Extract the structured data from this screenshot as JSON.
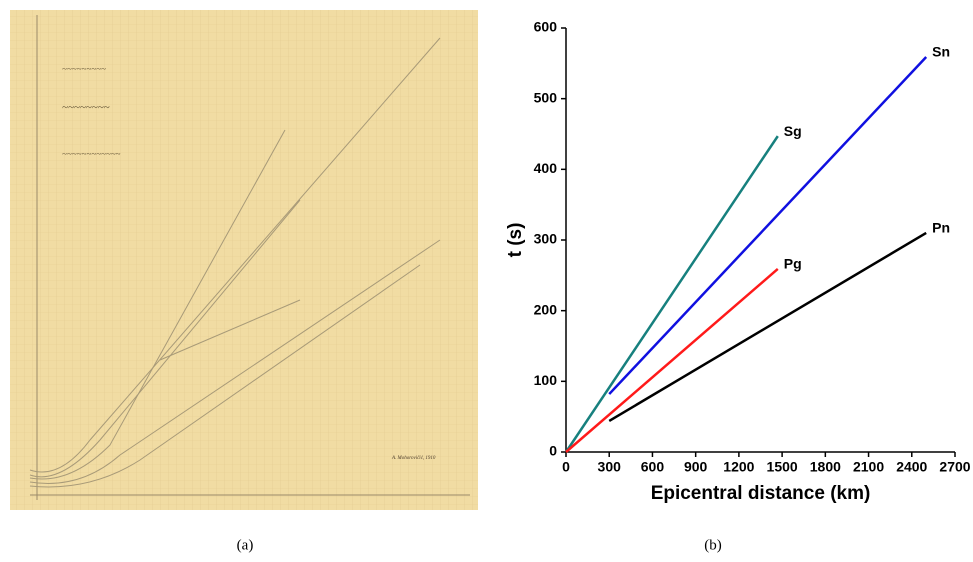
{
  "figure_a": {
    "label": "(a)",
    "signature": "A. Mohorovičić, 1910"
  },
  "chart_data": {
    "type": "line",
    "panel_label": "(b)",
    "x_label": "Epicentral distance (km)",
    "y_label": "t (s)",
    "xlim": [
      0,
      2700
    ],
    "ylim": [
      0,
      600
    ],
    "xticks": [
      0,
      300,
      600,
      900,
      1200,
      1500,
      1800,
      2100,
      2400,
      2700
    ],
    "yticks": [
      0,
      100,
      200,
      300,
      400,
      500,
      600
    ],
    "series": [
      {
        "name": "Sg",
        "color": "#17807e",
        "x": [
          0,
          1470
        ],
        "values": [
          0,
          447
        ]
      },
      {
        "name": "Sn",
        "color": "#1010e0",
        "x": [
          300,
          2500
        ],
        "values": [
          82,
          559
        ]
      },
      {
        "name": "Pg",
        "color": "#ff1a1a",
        "x": [
          0,
          1470
        ],
        "values": [
          0,
          259
        ]
      },
      {
        "name": "Pn",
        "color": "#000000",
        "x": [
          300,
          2500
        ],
        "values": [
          44,
          310
        ]
      }
    ]
  }
}
